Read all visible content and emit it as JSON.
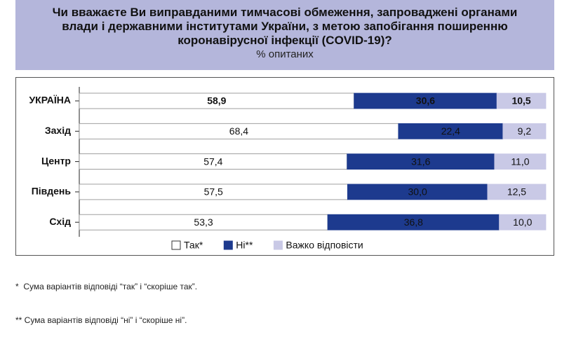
{
  "chart_data": {
    "type": "stacked-bar-horizontal",
    "title": "Чи вважаєте Ви виправданими тимчасові обмеження, запроваджені органами влади і державними інститутами України, з метою запобігання поширенню коронавірусної інфекції (COVID-19)?",
    "subtitle": "% опитаних",
    "categories": [
      "УКРАЇНА",
      "Захід",
      "Центр",
      "Південь",
      "Схід"
    ],
    "series": [
      {
        "name": "Так*",
        "color": "#ffffff",
        "values": [
          58.9,
          68.4,
          57.4,
          57.5,
          53.3
        ],
        "value_labels": [
          "58,9",
          "68,4",
          "57,4",
          "57,5",
          "53,3"
        ]
      },
      {
        "name": "Ні**",
        "color": "#1d3a8e",
        "values": [
          30.6,
          22.4,
          31.6,
          30.0,
          36.8
        ],
        "value_labels": [
          "30,6",
          "22,4",
          "31,6",
          "30,0",
          "36,8"
        ]
      },
      {
        "name": "Важко відповісти",
        "color": "#c9c9e6",
        "values": [
          10.5,
          9.2,
          11.0,
          12.5,
          10.0
        ],
        "value_labels": [
          "10,5",
          "9,2",
          "11,0",
          "12,5",
          "10,0"
        ]
      }
    ]
  },
  "footnotes": [
    "*  Сума варіантів відповіді “так” і “скоріше так”.",
    "** Сума варіантів відповіді “ні” і “скоріше ні”."
  ]
}
